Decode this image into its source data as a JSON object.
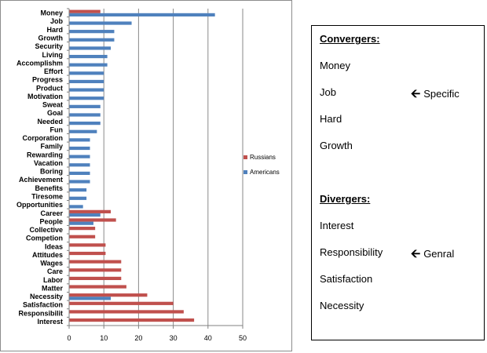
{
  "chart_data": {
    "type": "bar",
    "orientation": "horizontal",
    "categories": [
      "Money",
      "Job",
      "Hard",
      "Growth",
      "Security",
      "Living",
      "Accomplishm",
      "Effort",
      "Progress",
      "Product",
      "Motivation",
      "Sweat",
      "Goal",
      "Needed",
      "Fun",
      "Corporation",
      "Family",
      "Rewarding",
      "Vacation",
      "Boring",
      "Achievement",
      "Benefits",
      "Tiresome",
      "Opportunities",
      "Career",
      "People",
      "Collective",
      "Competion",
      "Ideas",
      "Attitudes",
      "Wages",
      "Care",
      "Labor",
      "Matter",
      "Necessity",
      "Satisfaction",
      "Responsibilit",
      "Interest"
    ],
    "series": [
      {
        "name": "Russians",
        "color": "#c0504d",
        "values": [
          9,
          0,
          0,
          0,
          0,
          0,
          0,
          0,
          0,
          0,
          0,
          0,
          0,
          0,
          0,
          0,
          0,
          0,
          0,
          0,
          0,
          0,
          0,
          0,
          12,
          13.5,
          7.5,
          7.5,
          10.5,
          10.5,
          15,
          15,
          15,
          16.5,
          22.5,
          30,
          33,
          36
        ]
      },
      {
        "name": "Americans",
        "color": "#4f81bd",
        "values": [
          42,
          18,
          13,
          13,
          12,
          11,
          11,
          10,
          10,
          10,
          10,
          9,
          9,
          9,
          8,
          6,
          6,
          6,
          6,
          6,
          6,
          5,
          5,
          4,
          9,
          7,
          0,
          0,
          0,
          0,
          0,
          0,
          0,
          0,
          12,
          0,
          0,
          0
        ]
      }
    ],
    "xlim": [
      0,
      50
    ],
    "xticks": [
      "0",
      "10",
      "20",
      "30",
      "40",
      "50"
    ],
    "grid": "vertical",
    "legend": "right"
  },
  "notes": {
    "convergers_heading": "Convergers:",
    "convergers": [
      "Money",
      "Job",
      "Hard",
      "Growth"
    ],
    "specific_label": "Specific",
    "divergers_heading": "Divergers:",
    "divergers": [
      "Interest",
      "Responsibility",
      "Satisfaction",
      "Necessity"
    ],
    "genral_label": "Genral",
    "arrow_icon": "left-arrow-icon"
  }
}
